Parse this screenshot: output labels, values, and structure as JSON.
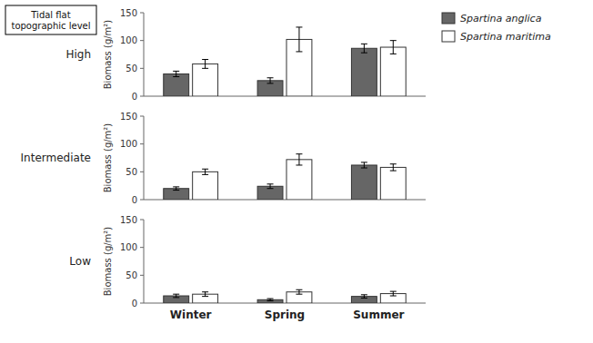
{
  "chart_data": [
    {
      "type": "bar",
      "title": "High",
      "annotations": [
        "Tidal flat\ntopographic level"
      ],
      "categories": [
        "Winter",
        "Spring",
        "Summer"
      ],
      "series": [
        {
          "name": "Spartina anglica",
          "color": "#666666",
          "values": [
            40,
            28,
            86
          ],
          "errors": [
            5,
            5,
            8
          ]
        },
        {
          "name": "Spartina maritima",
          "color": "#ffffff",
          "values": [
            58,
            102,
            88
          ],
          "errors": [
            8,
            22,
            12
          ]
        }
      ],
      "ylabel": "Biomass (g/m²)",
      "ylim": [
        0,
        150
      ],
      "yticks": [
        0,
        50,
        100,
        150
      ],
      "legend": "upper right",
      "tick_labels": "y"
    },
    {
      "type": "bar",
      "title": "Intermediate",
      "categories": [
        "Winter",
        "Spring",
        "Summer"
      ],
      "series": [
        {
          "name": "Spartina anglica",
          "color": "#666666",
          "values": [
            20,
            24,
            62
          ],
          "errors": [
            3,
            4,
            5
          ]
        },
        {
          "name": "Spartina maritima",
          "color": "#ffffff",
          "values": [
            50,
            72,
            58
          ],
          "errors": [
            5,
            10,
            6
          ]
        }
      ],
      "ylabel": "Biomass (g/m²)",
      "ylim": [
        0,
        150
      ],
      "yticks": [
        0,
        50,
        100,
        150
      ],
      "tick_labels": "y"
    },
    {
      "type": "bar",
      "title": "Low",
      "categories": [
        "Winter",
        "Spring",
        "Summer"
      ],
      "series": [
        {
          "name": "Spartina anglica",
          "color": "#666666",
          "values": [
            13,
            6,
            12
          ],
          "errors": [
            3,
            2,
            3
          ]
        },
        {
          "name": "Spartina maritima",
          "color": "#ffffff",
          "values": [
            16,
            20,
            17
          ],
          "errors": [
            4,
            4,
            4
          ]
        }
      ],
      "ylabel": "Biomass (g/m²)",
      "ylim": [
        0,
        150
      ],
      "yticks": [
        0,
        50,
        100,
        150
      ]
    }
  ]
}
